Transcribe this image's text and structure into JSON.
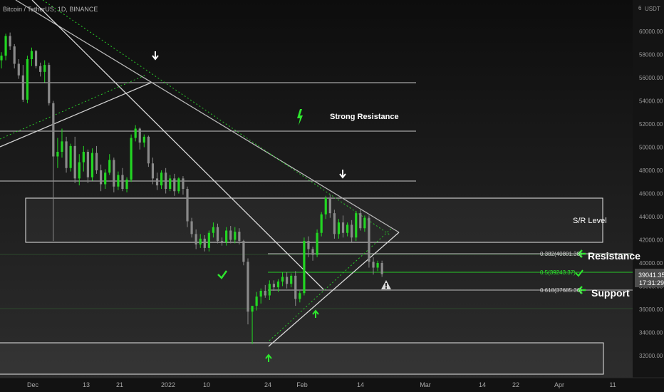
{
  "header": {
    "symbol_text": "Bitcoin / TetherUS, 1D, BINANCE",
    "currency": "USDT"
  },
  "price_axis": {
    "ticks": [
      "32000.00",
      "34000.00",
      "36000.00",
      "38000.00",
      "40000.00",
      "42000.00",
      "44000.00",
      "46000.00",
      "48000.00",
      "50000.00",
      "52000.00",
      "54000.00",
      "56000.00",
      "58000.00",
      "60000.00"
    ],
    "top_digit": "6"
  },
  "time_axis": {
    "ticks": [
      "Dec",
      "13",
      "21",
      "2022",
      "10",
      "24",
      "Feb",
      "14",
      "Mar",
      "14",
      "22",
      "Apr",
      "11"
    ]
  },
  "last_price": {
    "price": "39041.35",
    "countdown": "17:31:29",
    "color": "#4d4d4d"
  },
  "annotations": {
    "strong_resistance": "Strong Resistance",
    "sr_level": "S/R Level",
    "resistance": "Resistance",
    "support": "Support",
    "fib_382": "0.382(40801.38)",
    "fib_5": "0.5(39243.37)",
    "fib_618": "0.618(37685.36)"
  },
  "icons": [
    "arrow-down-icon",
    "arrow-up-icon",
    "lightning-icon",
    "checkmark-icon",
    "arrow-left-icon",
    "warning-icon"
  ],
  "colors": {
    "up": "#22d622",
    "down": "#8a8a8a",
    "background": "#131722",
    "accent_green": "#2ee62e",
    "line_gray": "#b5b5b5"
  },
  "chart_data": {
    "type": "candlestick",
    "title": "Bitcoin / TetherUS, 1D, BINANCE",
    "ylim": [
      31000,
      62000
    ],
    "x_ticks": [
      "Dec",
      "13",
      "21",
      "2022",
      "10",
      "24",
      "Feb",
      "14",
      "Mar",
      "14",
      "22",
      "Apr",
      "11"
    ],
    "levels": [
      {
        "name": "Strong Resistance",
        "price": 51400
      },
      {
        "name": "0.382",
        "price": 40801.38
      },
      {
        "name": "0.5",
        "price": 39243.37
      },
      {
        "name": "0.618",
        "price": 37685.36
      }
    ],
    "zones": [
      {
        "name": "S/R Level",
        "from": 41800,
        "to": 45600
      },
      {
        "name": "bottom zone",
        "from": 30700,
        "to": 33200
      }
    ],
    "ohlc": [
      [
        57500,
        58200,
        56800,
        57900
      ],
      [
        57900,
        59800,
        57500,
        59600
      ],
      [
        59600,
        59900,
        58400,
        58700
      ],
      [
        58700,
        58900,
        56800,
        57200
      ],
      [
        57200,
        57600,
        55900,
        56200
      ],
      [
        56200,
        57100,
        53900,
        54100
      ],
      [
        54100,
        57900,
        53800,
        57600
      ],
      [
        57600,
        58600,
        57000,
        58300
      ],
      [
        58300,
        58400,
        56800,
        57000
      ],
      [
        57000,
        57300,
        56100,
        56500
      ],
      [
        56500,
        57500,
        55600,
        57100
      ],
      [
        57100,
        57300,
        53600,
        53800
      ],
      [
        53800,
        54000,
        41900,
        49200
      ],
      [
        49200,
        50800,
        48200,
        49600
      ],
      [
        49600,
        51600,
        49100,
        50500
      ],
      [
        50500,
        50900,
        47800,
        48200
      ],
      [
        48200,
        50300,
        47900,
        50100
      ],
      [
        50100,
        50900,
        46900,
        47300
      ],
      [
        47300,
        49400,
        46700,
        48700
      ],
      [
        48700,
        50100,
        47900,
        49600
      ],
      [
        49600,
        49800,
        46900,
        47400
      ],
      [
        47400,
        49900,
        47100,
        49500
      ],
      [
        49500,
        50100,
        47700,
        48000
      ],
      [
        48000,
        48500,
        46200,
        46800
      ],
      [
        46800,
        48100,
        46400,
        47800
      ],
      [
        47800,
        49400,
        47600,
        48900
      ],
      [
        48900,
        49100,
        46100,
        46600
      ],
      [
        46600,
        47900,
        46300,
        47600
      ],
      [
        47600,
        48200,
        46200,
        46400
      ],
      [
        46400,
        47400,
        46100,
        47200
      ],
      [
        47200,
        51100,
        47000,
        50800
      ],
      [
        50800,
        51900,
        50500,
        51600
      ],
      [
        51600,
        51700,
        49800,
        50400
      ],
      [
        50400,
        51100,
        50000,
        50900
      ],
      [
        50900,
        51000,
        48300,
        48600
      ],
      [
        48600,
        49100,
        46800,
        47300
      ],
      [
        47300,
        47800,
        46300,
        46700
      ],
      [
        46700,
        48000,
        46400,
        47800
      ],
      [
        47800,
        48200,
        46000,
        46400
      ],
      [
        46400,
        47600,
        46200,
        47300
      ],
      [
        47300,
        47700,
        45800,
        46200
      ],
      [
        46200,
        47400,
        46000,
        47300
      ],
      [
        47300,
        47500,
        45900,
        46400
      ],
      [
        46400,
        46600,
        43100,
        43600
      ],
      [
        43600,
        43900,
        42200,
        42500
      ],
      [
        42500,
        42900,
        41200,
        41600
      ],
      [
        41600,
        42500,
        41300,
        42100
      ],
      [
        42100,
        42400,
        41000,
        41300
      ],
      [
        41300,
        42800,
        41000,
        42600
      ],
      [
        42600,
        43500,
        42200,
        43100
      ],
      [
        43100,
        43400,
        41700,
        41900
      ],
      [
        41900,
        42200,
        41500,
        41800
      ],
      [
        41800,
        43100,
        41500,
        42800
      ],
      [
        42800,
        43200,
        41700,
        42000
      ],
      [
        42000,
        43100,
        41700,
        42700
      ],
      [
        42700,
        43000,
        41600,
        41900
      ],
      [
        41900,
        42000,
        39800,
        40100
      ],
      [
        40100,
        40400,
        34700,
        35800
      ],
      [
        35800,
        36200,
        33000,
        36300
      ],
      [
        36300,
        37500,
        35900,
        37100
      ],
      [
        37100,
        37800,
        36500,
        37600
      ],
      [
        37600,
        38100,
        37000,
        37200
      ],
      [
        37200,
        38500,
        36800,
        38200
      ],
      [
        38200,
        38500,
        37600,
        37900
      ],
      [
        37900,
        38600,
        37500,
        38400
      ],
      [
        38400,
        39200,
        38000,
        38800
      ],
      [
        38800,
        39200,
        37800,
        38200
      ],
      [
        38200,
        39100,
        37900,
        38900
      ],
      [
        38900,
        39300,
        36300,
        36900
      ],
      [
        36900,
        37600,
        36600,
        37400
      ],
      [
        37400,
        42200,
        37200,
        41900
      ],
      [
        41900,
        42300,
        40500,
        41200
      ],
      [
        41200,
        41400,
        40200,
        40700
      ],
      [
        40700,
        42900,
        40500,
        42600
      ],
      [
        42600,
        44400,
        42300,
        44200
      ],
      [
        44200,
        45800,
        43800,
        45600
      ],
      [
        45600,
        45900,
        43900,
        44300
      ],
      [
        44300,
        44600,
        42100,
        42500
      ],
      [
        42500,
        43800,
        42100,
        43500
      ],
      [
        43500,
        44100,
        42200,
        42600
      ],
      [
        42600,
        43500,
        42300,
        43300
      ],
      [
        43300,
        43700,
        41800,
        42200
      ],
      [
        42200,
        44500,
        41900,
        44300
      ],
      [
        44300,
        44700,
        42800,
        43000
      ],
      [
        43000,
        44100,
        42700,
        43900
      ],
      [
        43900,
        44100,
        39600,
        40100
      ],
      [
        40100,
        40500,
        39000,
        39600
      ],
      [
        39600,
        40200,
        39300,
        40000
      ],
      [
        40000,
        40200,
        38800,
        39041.35
      ]
    ]
  }
}
